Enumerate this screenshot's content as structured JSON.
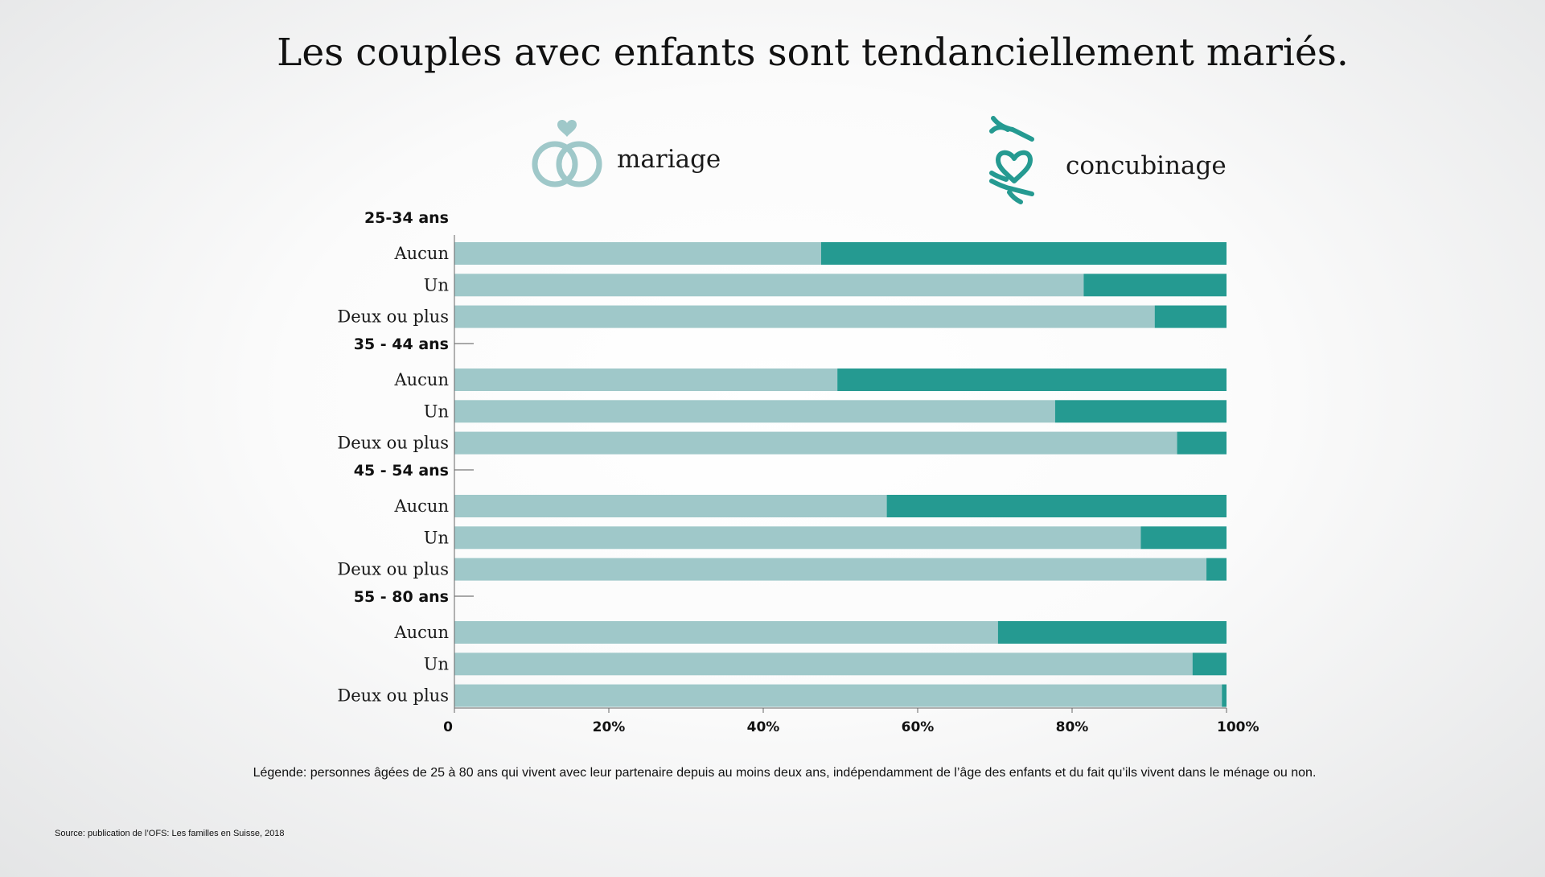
{
  "title": "Les couples avec enfants sont tendanciellement mariés.",
  "legend": {
    "mariage": {
      "label": "mariage",
      "icon": "wedding-rings-icon",
      "color": "#9fc8c9"
    },
    "concubinage": {
      "label": "concubinage",
      "icon": "hands-heart-icon",
      "color": "#259a91"
    }
  },
  "chart_data": {
    "type": "bar",
    "orientation": "horizontal",
    "stacked": true,
    "xlim": [
      0,
      100
    ],
    "x_ticks": [
      "0",
      "20%",
      "40%",
      "60%",
      "80%",
      "100%"
    ],
    "series": [
      {
        "name": "mariage",
        "color": "#9fc8c9"
      },
      {
        "name": "concubinage",
        "color": "#259a91"
      }
    ],
    "groups": [
      {
        "label": "25-34 ans",
        "bars": [
          {
            "label": "Aucun",
            "mariage": 47.5,
            "concubinage": 52.5
          },
          {
            "label": "Un",
            "mariage": 81.5,
            "concubinage": 18.5
          },
          {
            "label": "Deux ou plus",
            "mariage": 90.7,
            "concubinage": 9.3
          }
        ]
      },
      {
        "label": "35 - 44 ans",
        "bars": [
          {
            "label": "Aucun",
            "mariage": 49.6,
            "concubinage": 50.4
          },
          {
            "label": "Un",
            "mariage": 77.8,
            "concubinage": 22.2
          },
          {
            "label": "Deux ou plus",
            "mariage": 93.6,
            "concubinage": 6.4
          }
        ]
      },
      {
        "label": "45 - 54 ans",
        "bars": [
          {
            "label": "Aucun",
            "mariage": 56.0,
            "concubinage": 44.0
          },
          {
            "label": "Un",
            "mariage": 88.9,
            "concubinage": 11.1
          },
          {
            "label": "Deux ou plus",
            "mariage": 97.4,
            "concubinage": 2.6
          }
        ]
      },
      {
        "label": "55 - 80 ans",
        "bars": [
          {
            "label": "Aucun",
            "mariage": 70.4,
            "concubinage": 29.6
          },
          {
            "label": "Un",
            "mariage": 95.6,
            "concubinage": 4.4
          },
          {
            "label": "Deux ou plus",
            "mariage": 99.4,
            "concubinage": 0.6
          }
        ]
      }
    ]
  },
  "note": "Légende: personnes âgées de 25 à 80 ans qui vivent avec leur partenaire depuis au moins deux ans, indépendamment de l’âge des enfants et du fait qu’ils vivent dans le ménage ou non.",
  "source": "Source: publication de l’OFS: Les familles en Suisse, 2018"
}
